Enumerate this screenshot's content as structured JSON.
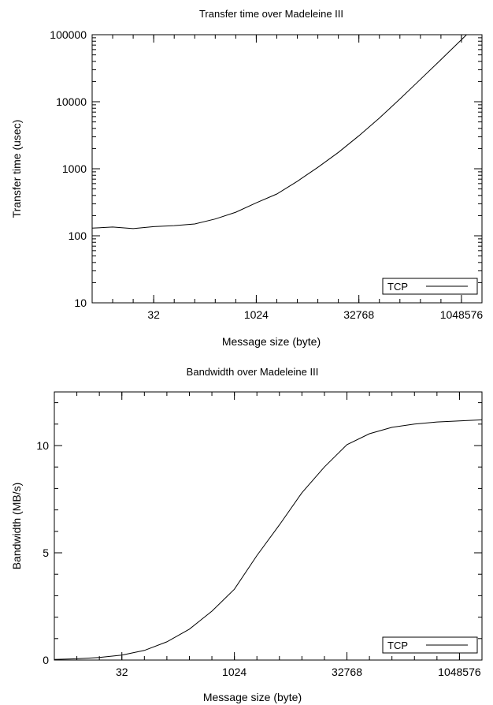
{
  "chart_data": [
    {
      "type": "line",
      "title": "Transfer time over Madeleine III",
      "xlabel": "Message size (byte)",
      "ylabel": "Transfer time (usec)",
      "x_scale": "log2",
      "y_scale": "log10",
      "xlim": [
        4,
        2097152
      ],
      "ylim": [
        10,
        100000
      ],
      "x_ticks": [
        {
          "value": 32,
          "label": "32"
        },
        {
          "value": 1024,
          "label": "1024"
        },
        {
          "value": 32768,
          "label": "32768"
        },
        {
          "value": 1048576,
          "label": "1048576"
        }
      ],
      "y_ticks": [
        {
          "value": 10,
          "label": "10"
        },
        {
          "value": 100,
          "label": "100"
        },
        {
          "value": 1000,
          "label": "1000"
        },
        {
          "value": 10000,
          "label": "10000"
        },
        {
          "value": 100000,
          "label": "100000"
        }
      ],
      "legend": {
        "position": "bottom-right",
        "entries": [
          "TCP"
        ]
      },
      "series": [
        {
          "name": "TCP",
          "x": [
            4,
            8,
            16,
            32,
            64,
            128,
            256,
            512,
            1024,
            2048,
            4096,
            8192,
            16384,
            32768,
            65536,
            131072,
            262144,
            524288,
            1048576,
            2097152
          ],
          "y": [
            130,
            135,
            128,
            137,
            142,
            150,
            178,
            225,
            310,
            420,
            650,
            1050,
            1750,
            3100,
            5700,
            11000,
            21500,
            42500,
            84000,
            168000
          ]
        }
      ]
    },
    {
      "type": "line",
      "title": "Bandwidth over Madeleine III",
      "xlabel": "Message size (byte)",
      "ylabel": "Bandwidth (MB/s)",
      "x_scale": "log2",
      "y_scale": "linear",
      "xlim": [
        4,
        2097152
      ],
      "ylim": [
        0,
        12.5
      ],
      "x_ticks": [
        {
          "value": 32,
          "label": "32"
        },
        {
          "value": 1024,
          "label": "1024"
        },
        {
          "value": 32768,
          "label": "32768"
        },
        {
          "value": 1048576,
          "label": "1048576"
        }
      ],
      "y_ticks": [
        {
          "value": 0,
          "label": "0"
        },
        {
          "value": 5,
          "label": "5"
        },
        {
          "value": 10,
          "label": "10"
        }
      ],
      "legend": {
        "position": "bottom-right",
        "entries": [
          "TCP"
        ]
      },
      "series": [
        {
          "name": "TCP",
          "x": [
            4,
            8,
            16,
            32,
            64,
            128,
            256,
            512,
            1024,
            2048,
            4096,
            8192,
            16384,
            32768,
            65536,
            131072,
            262144,
            524288,
            1048576,
            2097152
          ],
          "y": [
            0.03,
            0.06,
            0.12,
            0.23,
            0.45,
            0.85,
            1.44,
            2.28,
            3.3,
            4.87,
            6.3,
            7.8,
            9.0,
            10.04,
            10.55,
            10.85,
            11.0,
            11.1,
            11.15,
            11.2
          ]
        }
      ]
    }
  ]
}
